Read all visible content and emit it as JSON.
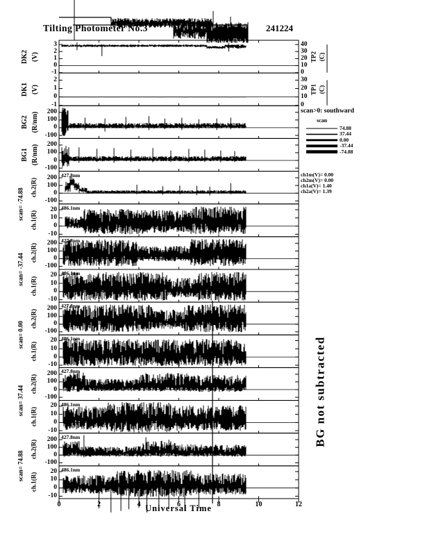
{
  "chart_data": {
    "type": "line",
    "title": "Tilting  Photometer  No.3",
    "date": "241224",
    "x": {
      "label": "Universal  Time",
      "min": 0,
      "max": 12,
      "ticks": [
        0,
        2,
        4,
        6,
        8,
        10,
        12
      ],
      "data_start": 0.15,
      "data_end": 9.35
    },
    "legend": {
      "note": "scan>0:  southward",
      "title": "scan",
      "entries": [
        {
          "label": "74.88",
          "lw": 1
        },
        {
          "label": "37.44",
          "lw": 1.6
        },
        {
          "label": "0.00",
          "lw": 2.8
        },
        {
          "label": "-37.44",
          "lw": 3.8
        },
        {
          "label": "-74.88",
          "lw": 4.6
        }
      ]
    },
    "calibration": [
      "ch1m(V)=  0.00",
      "ch2m(V)=  0.00",
      "ch1a(V)=  1.40",
      "ch2a(V)=  1.39"
    ],
    "side_note": "BG  not  subtracted",
    "long_spike": [
      306,
      433,
      725
    ],
    "overflow": {
      "lines": [
        [
          85,
          25,
          160,
          25
        ],
        [
          160,
          25,
          160,
          31
        ],
        [
          105,
          36,
          357,
          36
        ]
      ],
      "segments": [
        [
          160,
          305,
          33,
          7,
          7
        ],
        [
          250,
          357,
          45,
          13,
          11
        ],
        [
          298,
          357,
          53,
          12,
          9
        ]
      ],
      "spikes": [
        [
          107,
          0,
          58
        ],
        [
          307,
          16,
          58
        ],
        [
          332,
          24,
          58
        ]
      ]
    },
    "panels": [
      {
        "label": "DK2",
        "unit": "(V)",
        "group": null,
        "inplot": null,
        "ticks": [
          3,
          2,
          1,
          0,
          -1
        ],
        "ylim": [
          -1.05,
          3.6
        ],
        "right": {
          "ticks": [
            40,
            30,
            20,
            10,
            0
          ],
          "label": "TP2",
          "unit": "(C)"
        },
        "trace": {
          "segments": [
            [
              0.15,
              7.4,
              2.82,
              0.18,
              0.18
            ],
            [
              7.4,
              8.3,
              2.6,
              0.2,
              0.2
            ],
            [
              8.3,
              9.35,
              2.72,
              0.28,
              0.28
            ]
          ],
          "spikes": [
            [
              0.9,
              2.2,
              3.3
            ],
            [
              2.15,
              1.35,
              3.0
            ],
            [
              8.5,
              2.0,
              3.2
            ]
          ]
        }
      },
      {
        "label": "DK1",
        "unit": "(V)",
        "group": null,
        "inplot": null,
        "ticks": [
          2,
          1,
          0,
          -1
        ],
        "ylim": [
          -1.05,
          2.85
        ],
        "right": {
          "ticks": [
            30,
            20,
            10,
            0
          ],
          "label": "TP1",
          "unit": "(C)"
        },
        "trace": {
          "segments": [
            [
              0.15,
              9.35,
              0,
              0.02,
              0.02
            ]
          ],
          "spikes": []
        }
      },
      {
        "label": "BG2",
        "unit": "(R/nm)",
        "group": null,
        "inplot": null,
        "ticks": [
          200,
          100,
          0,
          -100
        ],
        "ylim": [
          -140,
          285
        ],
        "right": null,
        "trace": {
          "segments": [
            [
              0.15,
              0.45,
              30,
              150,
              230
            ],
            [
              0.45,
              9.35,
              18,
              26,
              44
            ]
          ],
          "spikes": [
            [
              1.3,
              -30,
              130
            ],
            [
              2.3,
              -50,
              120
            ],
            [
              3.35,
              -20,
              140
            ],
            [
              4.5,
              -30,
              150
            ],
            [
              5.3,
              -20,
              120
            ],
            [
              6.15,
              -30,
              130
            ],
            [
              7.0,
              -20,
              110
            ],
            [
              7.9,
              -30,
              120
            ],
            [
              8.6,
              -20,
              130
            ]
          ]
        }
      },
      {
        "label": "BG1",
        "unit": "(R/nm)",
        "group": null,
        "inplot": null,
        "ticks": [
          200,
          100,
          0,
          -100
        ],
        "ylim": [
          -140,
          285
        ],
        "right": null,
        "trace": {
          "segments": [
            [
              0.15,
              0.5,
              25,
              120,
              180
            ],
            [
              0.5,
              9.35,
              15,
              25,
              42
            ]
          ],
          "spikes": [
            [
              1.0,
              -30,
              170
            ],
            [
              1.9,
              -20,
              150
            ],
            [
              2.75,
              -30,
              160
            ],
            [
              3.6,
              -20,
              140
            ],
            [
              4.7,
              -25,
              160
            ],
            [
              5.6,
              -20,
              130
            ],
            [
              6.5,
              -25,
              150
            ],
            [
              7.3,
              -20,
              140
            ],
            [
              8.1,
              -25,
              130
            ],
            [
              8.8,
              -20,
              120
            ]
          ]
        }
      },
      {
        "label": "ch.2(R)",
        "unit": null,
        "group": "scan= -74.88",
        "inplot": "427.8nm",
        "ticks": [
          200,
          100,
          0,
          -100
        ],
        "ylim": [
          -140,
          285
        ],
        "right": null,
        "trace": {
          "segments": [
            [
              0.3,
              0.55,
              70,
              60,
              80
            ],
            [
              0.55,
              0.75,
              150,
              60,
              70
            ],
            [
              0.75,
              1.0,
              80,
              50,
              60
            ],
            [
              1.0,
              1.4,
              35,
              30,
              40
            ],
            [
              1.4,
              9.35,
              12,
              18,
              26
            ]
          ],
          "spikes": [
            [
              3.9,
              -15,
              110
            ],
            [
              5.2,
              -20,
              90
            ],
            [
              6.05,
              -15,
              100
            ],
            [
              6.9,
              -25,
              95
            ],
            [
              7.55,
              -30,
              85
            ],
            [
              8.6,
              -15,
              130
            ]
          ]
        }
      },
      {
        "label": "ch.1(R)",
        "unit": null,
        "group": null,
        "inplot": "486.1nm",
        "ticks": [
          20,
          10,
          0,
          -10
        ],
        "ylim": [
          -13,
          27
        ],
        "right": null,
        "trace": {
          "segments": [
            [
              0.3,
              1.2,
              3,
              6,
              9
            ],
            [
              1.2,
              4.3,
              4,
              14,
              17
            ],
            [
              4.3,
              6.6,
              2,
              10,
              18
            ],
            [
              6.6,
              9.35,
              5,
              15,
              19
            ]
          ],
          "spikes": []
        }
      },
      {
        "label": "ch.2(R)",
        "unit": null,
        "group": "scan= -37.44",
        "inplot": "427.8nm",
        "ticks": [
          200,
          100,
          0,
          -100
        ],
        "ylim": [
          -140,
          285
        ],
        "right": null,
        "trace": {
          "segments": [
            [
              0.2,
              3.9,
              50,
              150,
              200
            ],
            [
              3.9,
              6.6,
              35,
              70,
              130
            ],
            [
              6.6,
              9.35,
              55,
              150,
              200
            ]
          ],
          "spikes": []
        }
      },
      {
        "label": "ch.1(R)",
        "unit": null,
        "group": null,
        "inplot": "486.1nm",
        "ticks": [
          20,
          10,
          0,
          -10
        ],
        "ylim": [
          -13,
          27
        ],
        "right": null,
        "trace": {
          "segments": [
            [
              0.2,
              5.4,
              4,
              15,
              20
            ],
            [
              5.4,
              7.0,
              2,
              9,
              15
            ],
            [
              7.0,
              9.35,
              4,
              15,
              20
            ]
          ],
          "spikes": []
        }
      },
      {
        "label": "ch.2(R)",
        "unit": null,
        "group": "scan= 0.00",
        "inplot": "427.8nm",
        "ticks": [
          200,
          100,
          0,
          -100
        ],
        "ylim": [
          -140,
          285
        ],
        "right": null,
        "trace": {
          "segments": [
            [
              0.2,
              4.7,
              55,
              160,
              200
            ],
            [
              4.7,
              6.3,
              30,
              90,
              160
            ],
            [
              6.3,
              9.35,
              55,
              160,
              200
            ]
          ],
          "spikes": []
        }
      },
      {
        "label": "ch.1(R)",
        "unit": null,
        "group": null,
        "inplot": "486.1nm",
        "ticks": [
          20,
          10,
          0,
          -10
        ],
        "ylim": [
          -13,
          27
        ],
        "right": null,
        "trace": {
          "segments": [
            [
              0.2,
              9.35,
              3,
              14,
              19
            ]
          ],
          "spikes": []
        }
      },
      {
        "label": "ch.2(R)",
        "unit": null,
        "group": "scan= 37.44",
        "inplot": "427.8nm",
        "ticks": [
          200,
          100,
          0,
          -100
        ],
        "ylim": [
          -140,
          285
        ],
        "right": null,
        "trace": {
          "segments": [
            [
              0.2,
              1.3,
              55,
              90,
              170
            ],
            [
              1.3,
              4.0,
              30,
              50,
              110
            ],
            [
              4.0,
              6.6,
              45,
              70,
              170
            ],
            [
              6.6,
              9.35,
              40,
              70,
              150
            ]
          ],
          "spikes": []
        }
      },
      {
        "label": "ch.1(R)",
        "unit": null,
        "group": null,
        "inplot": "486.1nm",
        "ticks": [
          20,
          10,
          0,
          -10
        ],
        "ylim": [
          -13,
          27
        ],
        "right": null,
        "trace": {
          "segments": [
            [
              0.2,
              2.4,
              3,
              12,
              17
            ],
            [
              2.4,
              5.6,
              4,
              16,
              21
            ],
            [
              5.6,
              9.35,
              3,
              13,
              18
            ]
          ],
          "spikes": []
        }
      },
      {
        "label": "ch.2(R)",
        "unit": null,
        "group": "scan= 74.88",
        "inplot": "427.8nm",
        "ticks": [
          200,
          100,
          0,
          -100
        ],
        "ylim": [
          -140,
          285
        ],
        "right": null,
        "trace": {
          "segments": [
            [
              0.2,
              1.0,
              40,
              60,
              140
            ],
            [
              1.0,
              4.2,
              25,
              45,
              90
            ],
            [
              4.2,
              5.8,
              35,
              55,
              150
            ],
            [
              5.8,
              9.35,
              30,
              50,
              110
            ]
          ],
          "spikes": [
            [
              1.25,
              -30,
              260
            ],
            [
              4.35,
              -20,
              230
            ],
            [
              5.5,
              -20,
              200
            ]
          ]
        }
      },
      {
        "label": "ch.1(R)",
        "unit": null,
        "group": null,
        "inplot": "486.1nm",
        "ticks": [
          20,
          10,
          0,
          -10
        ],
        "ylim": [
          -13,
          27
        ],
        "right": null,
        "overflow_below": 22,
        "trace": {
          "segments": [
            [
              0.2,
              2.9,
              2,
              9,
              14
            ],
            [
              2.9,
              6.6,
              3,
              14,
              19
            ],
            [
              6.6,
              9.35,
              2,
              10,
              16
            ]
          ],
          "spikes": [
            [
              2.0,
              -25,
              5
            ],
            [
              2.6,
              -30,
              8
            ],
            [
              3.1,
              -28,
              4
            ],
            [
              3.5,
              -26,
              6
            ],
            [
              4.0,
              -24,
              5
            ],
            [
              4.4,
              -30,
              6
            ],
            [
              5.0,
              -26,
              4
            ],
            [
              5.5,
              -24,
              6
            ],
            [
              6.3,
              -28,
              5
            ],
            [
              7.0,
              -25,
              4
            ]
          ]
        }
      }
    ]
  }
}
